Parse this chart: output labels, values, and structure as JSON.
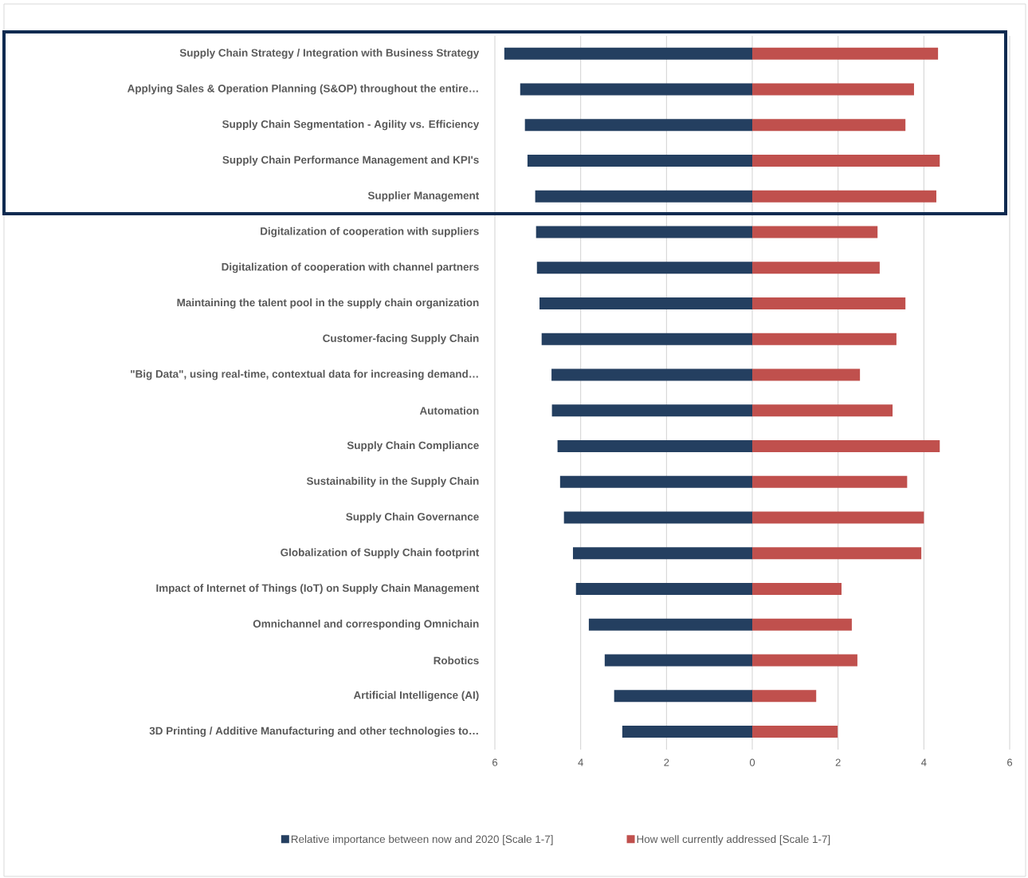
{
  "chart_data": {
    "type": "bar",
    "orientation": "horizontal",
    "categories": [
      "Supply Chain Strategy / Integration with Business Strategy",
      "Applying Sales & Operation Planning (S&OP) throughout the entire…",
      "Supply Chain Segmentation - Agility vs. Efficiency",
      "Supply Chain Performance Management and KPI's",
      "Supplier Management",
      "Digitalization of cooperation with suppliers",
      "Digitalization of cooperation with channel partners",
      "Maintaining the talent pool in the supply chain organization",
      "Customer-facing Supply Chain",
      "\"Big Data\", using real-time, contextual data for increasing demand…",
      "Automation",
      "Supply Chain Compliance",
      "Sustainability in the Supply Chain",
      "Supply Chain Governance",
      "Globalization of Supply Chain footprint",
      "Impact of Internet of Things (IoT) on Supply Chain Management",
      "Omnichannel and corresponding Omnichain",
      "Robotics",
      "Artificial Intelligence (AI)",
      "3D Printing / Additive Manufacturing and other technologies to…"
    ],
    "series": [
      {
        "name": "Relative importance between now and 2020 [Scale 1-7]",
        "color": "#243f60",
        "values": [
          -5.78,
          -5.41,
          -5.3,
          -5.24,
          -5.06,
          -5.04,
          -5.02,
          -4.96,
          -4.91,
          -4.68,
          -4.67,
          -4.54,
          -4.48,
          -4.39,
          -4.18,
          -4.11,
          -3.81,
          -3.44,
          -3.22,
          -3.03
        ]
      },
      {
        "name": "How well currently addressed [Scale 1-7]",
        "color": "#c0504d",
        "values": [
          4.33,
          3.77,
          3.57,
          4.37,
          4.29,
          2.92,
          2.97,
          3.57,
          3.36,
          2.51,
          3.27,
          4.37,
          3.61,
          4.0,
          3.94,
          2.08,
          2.32,
          2.45,
          1.49,
          1.99
        ]
      }
    ],
    "xlim": [
      -6,
      6
    ],
    "xticks": [
      {
        "value": -6,
        "label": "6"
      },
      {
        "value": -4,
        "label": "4"
      },
      {
        "value": -2,
        "label": "2"
      },
      0,
      2,
      4,
      6
    ],
    "stacked": true,
    "grid": "x",
    "legend": "bottom"
  }
}
